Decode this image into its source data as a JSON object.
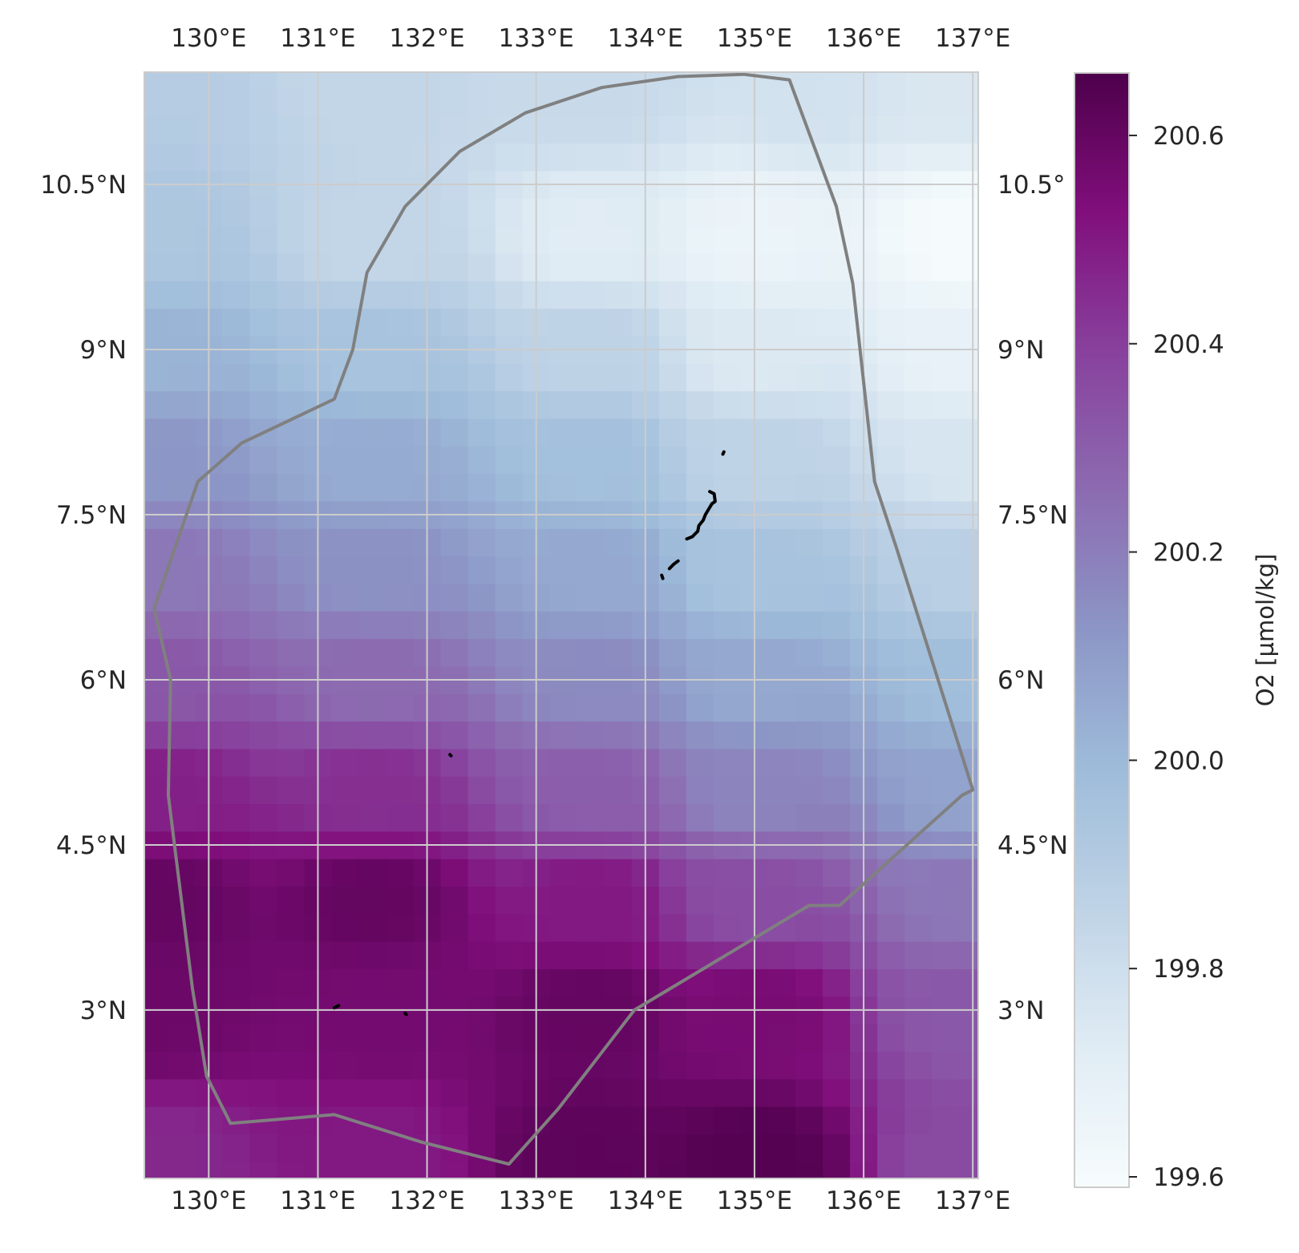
{
  "map": {
    "projection": "PlateCarree",
    "extent": {
      "lon": [
        129.41,
        137.05
      ],
      "lat": [
        1.47,
        11.52
      ]
    },
    "lon_ticks": [
      130,
      131,
      132,
      133,
      134,
      135,
      136,
      137
    ],
    "lat_ticks": [
      3.0,
      4.5,
      6.0,
      7.5,
      9.0,
      10.5
    ],
    "lon_tick_labels": [
      "130°E",
      "131°E",
      "132°E",
      "133°E",
      "134°E",
      "135°E",
      "136°E",
      "137°E"
    ],
    "lat_tick_labels": [
      "3°N",
      "4.5°N",
      "6°N",
      "7.5°N",
      "9°N",
      "10.5°N"
    ],
    "right_lat_tick_labels": [
      "3°N",
      "4.5°N",
      "6°N",
      "7.5°N",
      "9°N",
      "10.5°"
    ],
    "gridlines": true,
    "grid_color": "#cccccc"
  },
  "field": {
    "variable": "O2",
    "units": "µmol/kg",
    "grid_resolution_deg": 0.25,
    "control_points": [
      [
        129.5,
        11.4,
        199.9
      ],
      [
        131.5,
        11.4,
        199.84
      ],
      [
        133.5,
        11.4,
        199.82
      ],
      [
        135.5,
        11.4,
        199.78
      ],
      [
        137.0,
        11.4,
        199.75
      ],
      [
        129.5,
        10.0,
        199.93
      ],
      [
        131.5,
        10.0,
        199.84
      ],
      [
        133.5,
        10.0,
        199.72
      ],
      [
        135.0,
        10.0,
        199.66
      ],
      [
        137.0,
        10.0,
        199.6
      ],
      [
        129.5,
        9.0,
        200.02
      ],
      [
        131.5,
        9.0,
        199.95
      ],
      [
        133.5,
        9.0,
        199.86
      ],
      [
        135.0,
        9.0,
        199.74
      ],
      [
        137.0,
        9.0,
        199.68
      ],
      [
        129.5,
        8.0,
        200.12
      ],
      [
        131.5,
        8.0,
        200.05
      ],
      [
        133.5,
        8.0,
        199.97
      ],
      [
        135.0,
        8.0,
        199.86
      ],
      [
        137.0,
        8.0,
        199.76
      ],
      [
        129.5,
        7.0,
        200.22
      ],
      [
        131.5,
        7.0,
        200.14
      ],
      [
        133.5,
        7.0,
        200.06
      ],
      [
        135.0,
        7.0,
        199.95
      ],
      [
        137.0,
        7.0,
        199.88
      ],
      [
        129.5,
        6.0,
        200.32
      ],
      [
        131.5,
        6.0,
        200.26
      ],
      [
        133.5,
        6.0,
        200.16
      ],
      [
        135.0,
        6.0,
        200.06
      ],
      [
        137.0,
        6.0,
        199.98
      ],
      [
        129.5,
        5.0,
        200.48
      ],
      [
        131.5,
        5.0,
        200.44
      ],
      [
        133.5,
        5.0,
        200.3
      ],
      [
        135.0,
        5.0,
        200.18
      ],
      [
        137.0,
        5.0,
        200.08
      ],
      [
        129.5,
        4.0,
        200.6
      ],
      [
        131.5,
        4.0,
        200.6
      ],
      [
        133.5,
        4.0,
        200.5
      ],
      [
        135.0,
        4.0,
        200.35
      ],
      [
        137.0,
        4.0,
        200.22
      ],
      [
        129.5,
        3.0,
        200.58
      ],
      [
        131.5,
        3.0,
        200.56
      ],
      [
        133.5,
        3.0,
        200.6
      ],
      [
        135.0,
        3.0,
        200.55
      ],
      [
        137.0,
        3.0,
        200.32
      ],
      [
        129.5,
        1.6,
        200.46
      ],
      [
        131.5,
        1.6,
        200.5
      ],
      [
        133.5,
        1.6,
        200.62
      ],
      [
        135.0,
        1.6,
        200.64
      ],
      [
        137.0,
        1.6,
        200.36
      ]
    ],
    "masked_cells": [
      [
        134.625,
        7.875
      ],
      [
        134.625,
        7.625
      ],
      [
        134.625,
        7.375
      ],
      [
        134.375,
        7.375
      ],
      [
        134.125,
        7.375
      ],
      [
        134.125,
        7.125
      ]
    ]
  },
  "boundary": {
    "color": "#808080",
    "points": [
      [
        135.32,
        11.45
      ],
      [
        134.9,
        11.5
      ],
      [
        134.3,
        11.48
      ],
      [
        133.6,
        11.38
      ],
      [
        132.9,
        11.15
      ],
      [
        132.3,
        10.8
      ],
      [
        131.8,
        10.3
      ],
      [
        131.45,
        9.7
      ],
      [
        131.32,
        9.0
      ],
      [
        131.15,
        8.55
      ],
      [
        130.3,
        8.15
      ],
      [
        129.9,
        7.8
      ],
      [
        129.5,
        6.65
      ],
      [
        129.65,
        6.0
      ],
      [
        129.63,
        4.95
      ],
      [
        129.85,
        3.2
      ],
      [
        129.98,
        2.4
      ],
      [
        130.2,
        1.97
      ],
      [
        131.15,
        2.05
      ],
      [
        131.95,
        1.8
      ],
      [
        132.75,
        1.6
      ],
      [
        133.2,
        2.1
      ],
      [
        133.9,
        3.0
      ],
      [
        135.5,
        3.95
      ],
      [
        135.78,
        3.95
      ],
      [
        136.9,
        4.95
      ],
      [
        137.0,
        5.0
      ],
      [
        136.3,
        7.2
      ],
      [
        136.1,
        7.8
      ],
      [
        135.9,
        9.6
      ],
      [
        135.75,
        10.3
      ]
    ]
  },
  "islands": [
    {
      "name": "",
      "points": [
        [
          134.59,
          7.71
        ],
        [
          134.63,
          7.69
        ],
        [
          134.64,
          7.62
        ],
        [
          134.61,
          7.6
        ],
        [
          134.58,
          7.55
        ],
        [
          134.55,
          7.5
        ],
        [
          134.53,
          7.45
        ],
        [
          134.49,
          7.4
        ],
        [
          134.48,
          7.35
        ],
        [
          134.43,
          7.3
        ],
        [
          134.38,
          7.28
        ]
      ]
    },
    {
      "name": "",
      "points": [
        [
          134.3,
          7.08
        ],
        [
          134.26,
          7.05
        ],
        [
          134.22,
          7.01
        ]
      ]
    },
    {
      "name": "",
      "points": [
        [
          134.15,
          6.95
        ],
        [
          134.16,
          6.92
        ]
      ]
    },
    {
      "name": "",
      "points": [
        [
          134.72,
          8.07
        ],
        [
          134.71,
          8.05
        ]
      ]
    },
    {
      "name": "",
      "points": [
        [
          131.15,
          3.02
        ],
        [
          131.19,
          3.04
        ]
      ]
    },
    {
      "name": "",
      "points": [
        [
          131.8,
          2.97
        ],
        [
          131.81,
          2.96
        ]
      ]
    },
    {
      "name": "",
      "points": [
        [
          132.21,
          5.32
        ],
        [
          132.22,
          5.31
        ]
      ]
    }
  ],
  "colorbar": {
    "label": "O2 [µmol/kg]",
    "vmin": 199.59,
    "vmax": 200.66,
    "ticks": [
      199.6,
      199.8,
      200.0,
      200.2,
      200.4,
      200.6
    ],
    "tick_labels": [
      "199.6",
      "199.8",
      "200.0",
      "200.2",
      "200.4",
      "200.6"
    ],
    "colormap": "BuPu",
    "colormap_stops": [
      "#f7fcfd",
      "#e0ecf4",
      "#bfd3e6",
      "#9ebcda",
      "#8c96c6",
      "#8c6bb1",
      "#88419d",
      "#810f7c",
      "#4d004b"
    ]
  }
}
